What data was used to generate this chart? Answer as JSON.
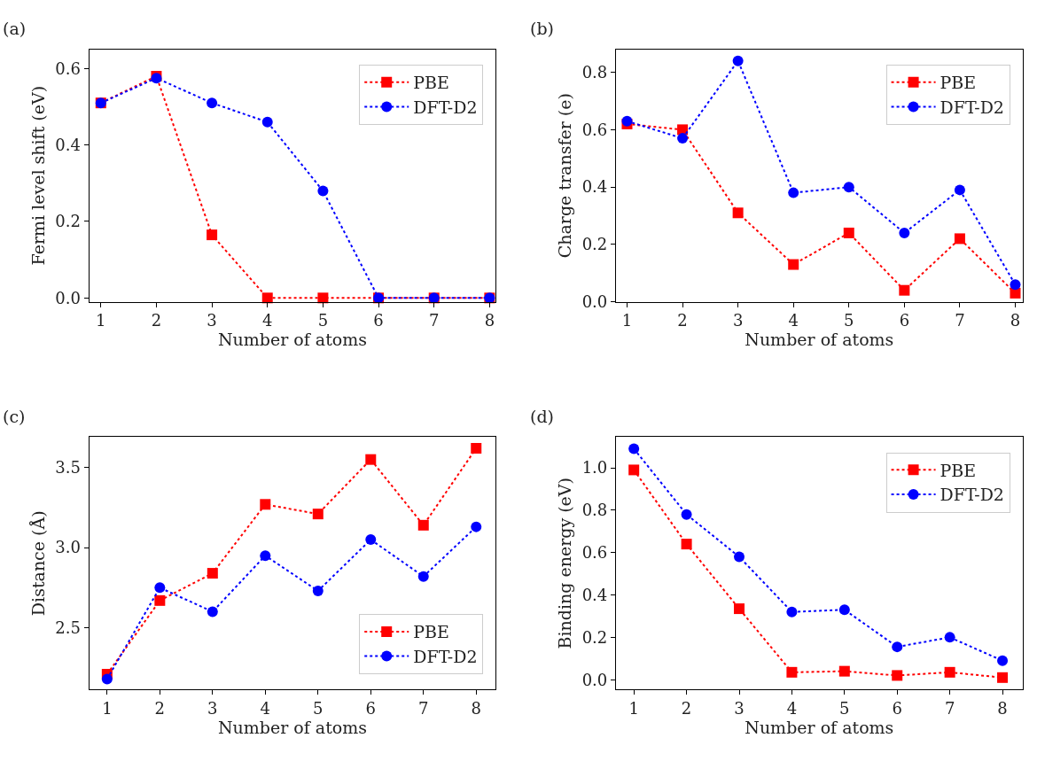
{
  "chart_data": [
    {
      "type": "line",
      "title": "(a)",
      "xlabel": "Number of atoms",
      "ylabel": "Fermi level shift (eV)",
      "x": [
        1,
        2,
        3,
        4,
        5,
        6,
        7,
        8
      ],
      "xlim": [
        0.79,
        8.11
      ],
      "xticks": [
        1,
        2,
        3,
        4,
        5,
        6,
        7,
        8
      ],
      "ylim": [
        -0.01,
        0.65
      ],
      "yticks": [
        {
          "value": 0,
          "label": "0.0"
        },
        0.2,
        0.4,
        0.6
      ],
      "legend": "top right",
      "line_style": "dotted",
      "series": [
        {
          "name": "PBE",
          "color": "#ff0000",
          "marker": "square",
          "values": [
            0.51,
            0.58,
            0.165,
            0,
            0,
            0,
            0,
            0
          ]
        },
        {
          "name": "DFT-D2",
          "color": "#0000ff",
          "marker": "circle",
          "values": [
            0.51,
            0.575,
            0.51,
            0.46,
            0.28,
            0,
            0,
            0
          ]
        }
      ]
    },
    {
      "type": "line",
      "title": "(b)",
      "xlabel": "Number of atoms",
      "ylabel": "Charge transfer (e)",
      "x": [
        1,
        2,
        3,
        4,
        5,
        6,
        7,
        8
      ],
      "xlim": [
        0.8,
        8.13
      ],
      "xticks": [
        1,
        2,
        3,
        4,
        5,
        6,
        7,
        8
      ],
      "ylim": [
        0,
        0.88
      ],
      "yticks": [
        {
          "value": 0,
          "label": "0.0"
        },
        0.2,
        0.4,
        0.6,
        0.8
      ],
      "legend": "top right",
      "line_style": "dotted",
      "series": [
        {
          "name": "PBE",
          "color": "#ff0000",
          "marker": "square",
          "values": [
            0.62,
            0.6,
            0.31,
            0.13,
            0.24,
            0.04,
            0.22,
            0.03
          ]
        },
        {
          "name": "DFT-D2",
          "color": "#0000ff",
          "marker": "circle",
          "values": [
            0.63,
            0.57,
            0.84,
            0.38,
            0.4,
            0.24,
            0.39,
            0.06
          ]
        }
      ]
    },
    {
      "type": "line",
      "title": "(c)",
      "xlabel": "Number of atoms",
      "ylabel": "Distance (Å)",
      "x": [
        1,
        2,
        3,
        4,
        5,
        6,
        7,
        8
      ],
      "xlim": [
        0.66,
        8.37
      ],
      "xticks": [
        1,
        2,
        3,
        4,
        5,
        6,
        7,
        8
      ],
      "ylim": [
        2.115,
        3.69
      ],
      "yticks": [
        2.5,
        {
          "value": 3,
          "label": "3.0"
        },
        3.5
      ],
      "legend": "bottom right",
      "line_style": "dotted",
      "series": [
        {
          "name": "PBE",
          "color": "#ff0000",
          "marker": "square",
          "values": [
            2.21,
            2.67,
            2.84,
            3.27,
            3.21,
            3.55,
            3.14,
            3.62
          ]
        },
        {
          "name": "DFT-D2",
          "color": "#0000ff",
          "marker": "circle",
          "values": [
            2.18,
            2.75,
            2.6,
            2.95,
            2.73,
            3.05,
            2.82,
            3.13
          ]
        }
      ]
    },
    {
      "type": "line",
      "title": "(d)",
      "xlabel": "Number of atoms",
      "ylabel": "Binding energy (eV)",
      "x": [
        1,
        2,
        3,
        4,
        5,
        6,
        7,
        8
      ],
      "xlim": [
        0.66,
        8.38
      ],
      "xticks": [
        1,
        2,
        3,
        4,
        5,
        6,
        7,
        8
      ],
      "ylim": [
        -0.046,
        1.145
      ],
      "yticks": [
        {
          "value": 0,
          "label": "0.0"
        },
        0.2,
        0.4,
        0.6,
        0.8,
        {
          "value": 1,
          "label": "1.0"
        }
      ],
      "legend": "top right",
      "line_style": "dotted",
      "series": [
        {
          "name": "PBE",
          "color": "#ff0000",
          "marker": "square",
          "values": [
            0.99,
            0.64,
            0.335,
            0.035,
            0.04,
            0.02,
            0.035,
            0.01
          ]
        },
        {
          "name": "DFT-D2",
          "color": "#0000ff",
          "marker": "circle",
          "values": [
            1.09,
            0.78,
            0.58,
            0.32,
            0.33,
            0.155,
            0.2,
            0.09
          ]
        }
      ]
    }
  ]
}
